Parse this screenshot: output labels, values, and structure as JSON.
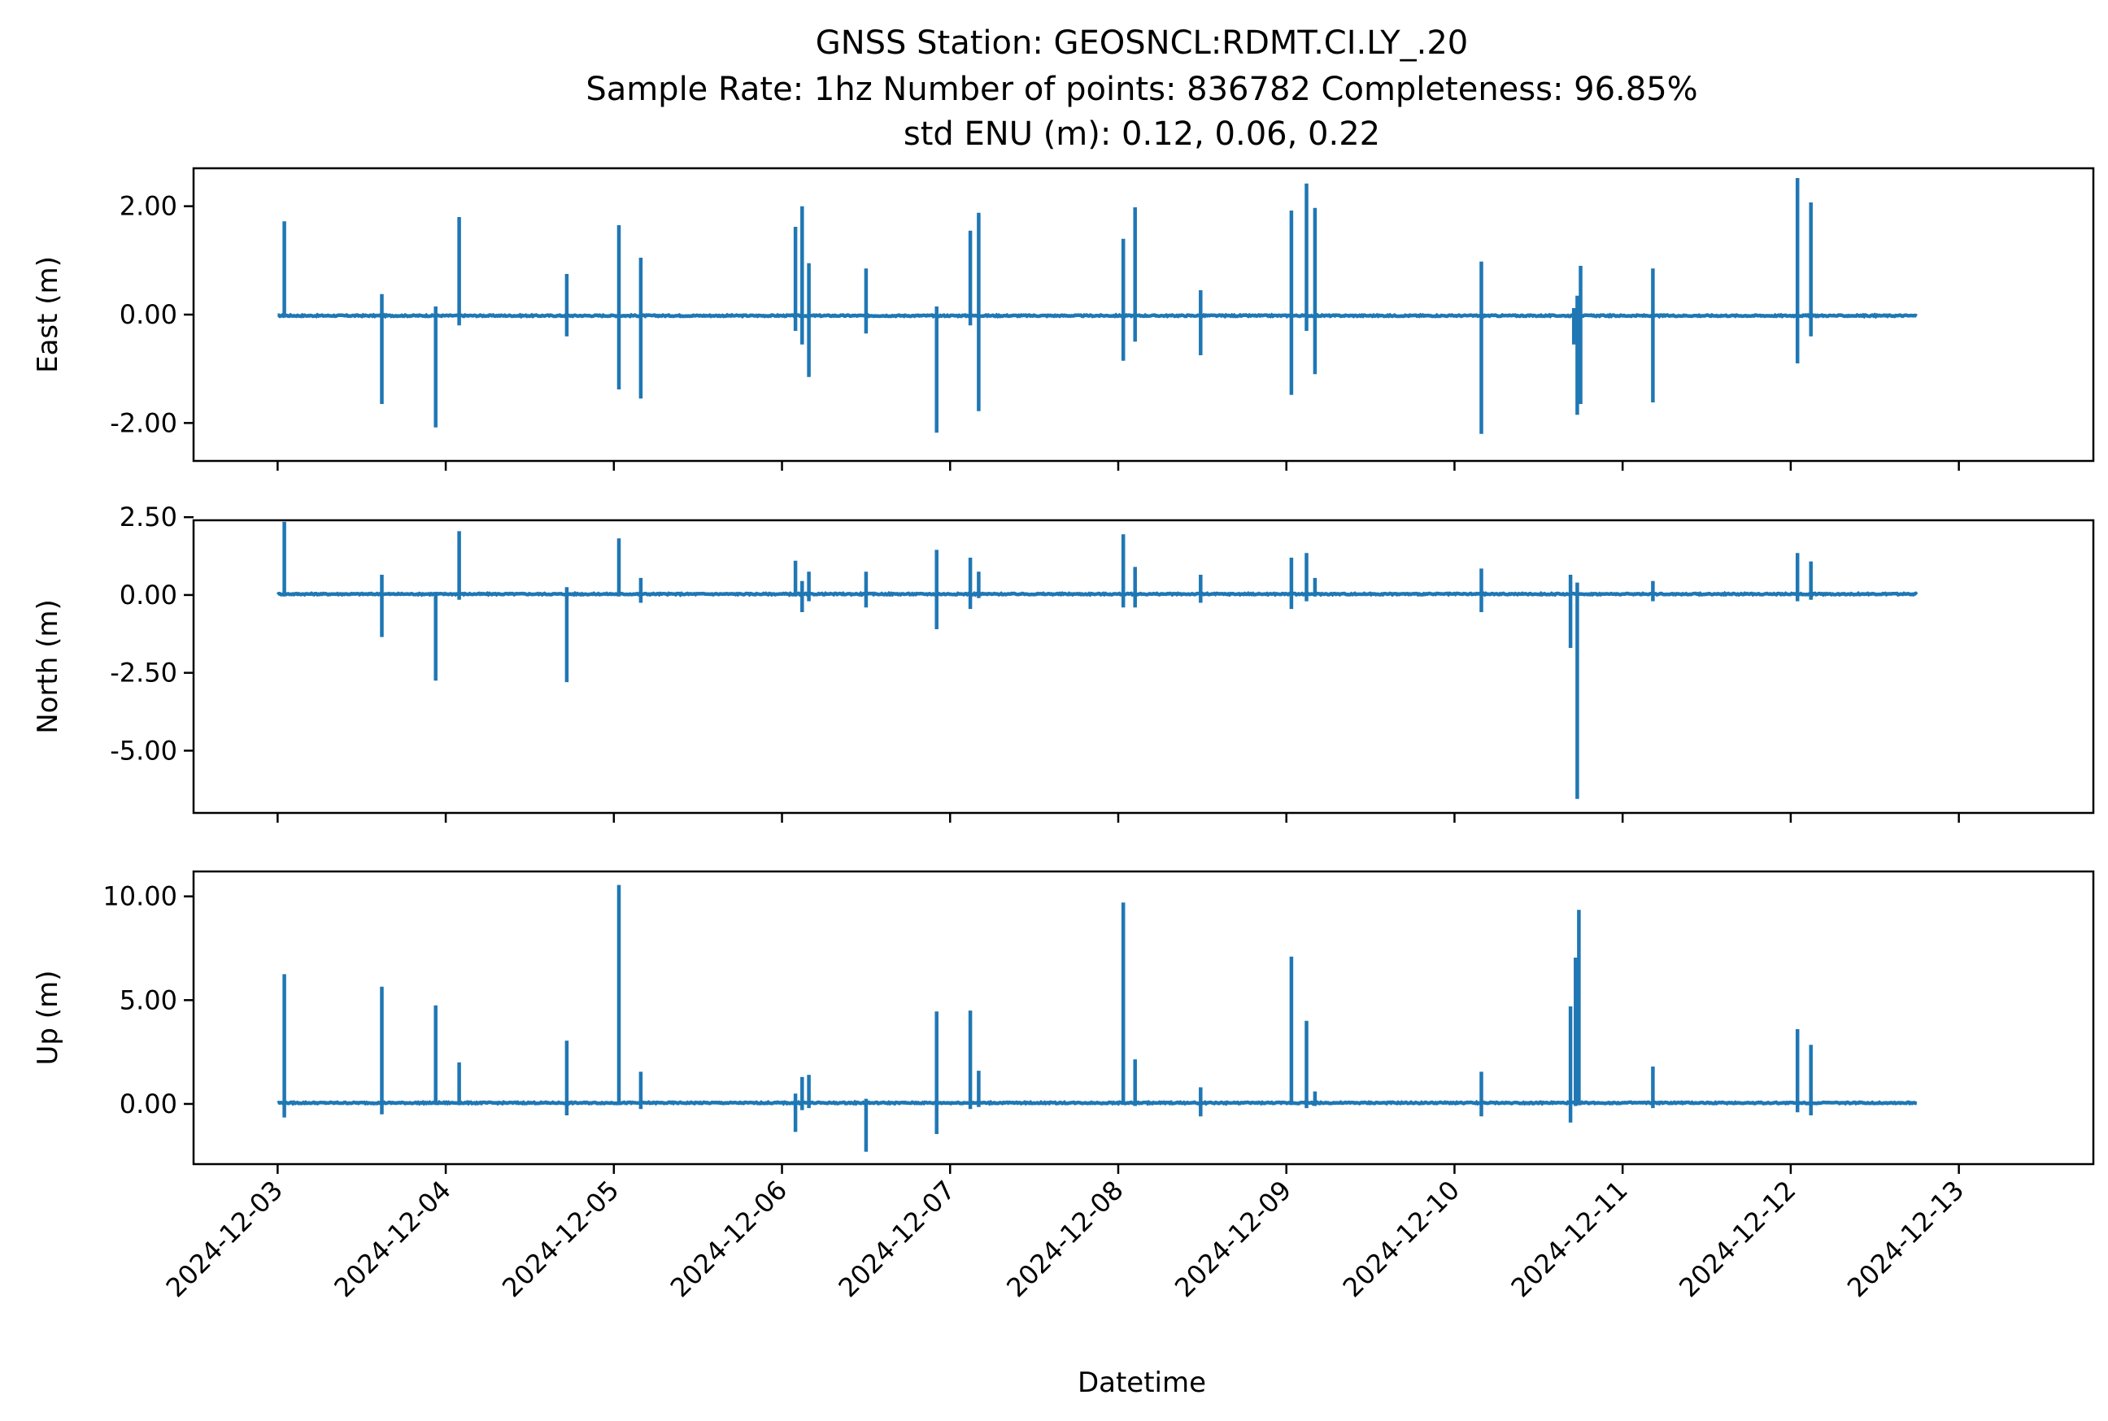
{
  "chart_data": {
    "type": "line",
    "title_lines": [
      "GNSS Station: GEOSNCL:RDMT.CI.LY_.20",
      "Sample Rate: 1hz   Number of points: 836782    Completeness:  96.85%",
      "std ENU (m):  0.12, 0.06, 0.22"
    ],
    "xlabel": "Datetime",
    "x_tick_labels": [
      "2024-12-03",
      "2024-12-04",
      "2024-12-05",
      "2024-12-06",
      "2024-12-07",
      "2024-12-08",
      "2024-12-09",
      "2024-12-10",
      "2024-12-11",
      "2024-12-12",
      "2024-12-13"
    ],
    "x_range_days": [
      -0.5,
      10.8
    ],
    "data_span_days": [
      0.0,
      9.75
    ],
    "series_color": "#1f77b4",
    "grid": false,
    "panels": [
      {
        "ylabel": "East (m)",
        "ylim": [
          -2.7,
          2.7
        ],
        "y_ticks": [
          2.0,
          0.0,
          -2.0
        ],
        "y_tick_labels": [
          "2.00",
          "0.00",
          "-2.00"
        ],
        "baseline": -0.02,
        "spikes": [
          {
            "day": 0.04,
            "min": -0.05,
            "max": 1.72
          },
          {
            "day": 0.62,
            "min": -1.65,
            "max": 0.38
          },
          {
            "day": 0.94,
            "min": -2.08,
            "max": 0.15
          },
          {
            "day": 1.08,
            "min": -0.2,
            "max": 1.8
          },
          {
            "day": 1.72,
            "min": -0.4,
            "max": 0.75
          },
          {
            "day": 2.03,
            "min": -1.38,
            "max": 1.65
          },
          {
            "day": 2.16,
            "min": -1.55,
            "max": 1.05
          },
          {
            "day": 3.08,
            "min": -0.3,
            "max": 1.62
          },
          {
            "day": 3.12,
            "min": -0.55,
            "max": 2.0
          },
          {
            "day": 3.16,
            "min": -1.15,
            "max": 0.95
          },
          {
            "day": 3.5,
            "min": -0.35,
            "max": 0.85
          },
          {
            "day": 3.92,
            "min": -2.18,
            "max": 0.15
          },
          {
            "day": 4.12,
            "min": -0.2,
            "max": 1.55
          },
          {
            "day": 4.17,
            "min": -1.78,
            "max": 1.88
          },
          {
            "day": 5.03,
            "min": -0.85,
            "max": 1.4
          },
          {
            "day": 5.1,
            "min": -0.5,
            "max": 1.98
          },
          {
            "day": 5.49,
            "min": -0.75,
            "max": 0.45
          },
          {
            "day": 6.03,
            "min": -1.48,
            "max": 1.92
          },
          {
            "day": 6.12,
            "min": -0.3,
            "max": 2.42
          },
          {
            "day": 6.17,
            "min": -1.1,
            "max": 1.97
          },
          {
            "day": 7.16,
            "min": -2.2,
            "max": 0.98
          },
          {
            "day": 7.71,
            "min": -0.55,
            "max": 0.12
          },
          {
            "day": 7.73,
            "min": -1.85,
            "max": 0.35
          },
          {
            "day": 7.75,
            "min": -1.65,
            "max": 0.9
          },
          {
            "day": 8.18,
            "min": -1.62,
            "max": 0.85
          },
          {
            "day": 9.04,
            "min": -0.9,
            "max": 2.52
          },
          {
            "day": 9.12,
            "min": -0.4,
            "max": 2.07
          }
        ]
      },
      {
        "ylabel": "North (m)",
        "ylim": [
          -7.0,
          2.4
        ],
        "y_ticks": [
          2.5,
          0.0,
          -2.5,
          -5.0
        ],
        "y_tick_labels": [
          "2.50",
          "0.00",
          "-2.50",
          "-5.00"
        ],
        "baseline": 0.03,
        "spikes": [
          {
            "day": 0.04,
            "min": -0.05,
            "max": 2.35
          },
          {
            "day": 0.62,
            "min": -1.35,
            "max": 0.65
          },
          {
            "day": 0.94,
            "min": -2.75,
            "max": 0.1
          },
          {
            "day": 1.08,
            "min": -0.15,
            "max": 2.05
          },
          {
            "day": 1.72,
            "min": -2.8,
            "max": 0.25
          },
          {
            "day": 2.03,
            "min": -0.05,
            "max": 1.82
          },
          {
            "day": 2.16,
            "min": -0.25,
            "max": 0.55
          },
          {
            "day": 3.08,
            "min": -0.05,
            "max": 1.1
          },
          {
            "day": 3.12,
            "min": -0.55,
            "max": 0.45
          },
          {
            "day": 3.16,
            "min": -0.2,
            "max": 0.75
          },
          {
            "day": 3.5,
            "min": -0.4,
            "max": 0.75
          },
          {
            "day": 3.92,
            "min": -1.1,
            "max": 1.45
          },
          {
            "day": 4.12,
            "min": -0.45,
            "max": 1.2
          },
          {
            "day": 4.17,
            "min": -0.1,
            "max": 0.75
          },
          {
            "day": 5.03,
            "min": -0.4,
            "max": 1.95
          },
          {
            "day": 5.1,
            "min": -0.4,
            "max": 0.9
          },
          {
            "day": 5.49,
            "min": -0.25,
            "max": 0.65
          },
          {
            "day": 6.03,
            "min": -0.45,
            "max": 1.2
          },
          {
            "day": 6.12,
            "min": -0.2,
            "max": 1.35
          },
          {
            "day": 6.17,
            "min": -0.05,
            "max": 0.55
          },
          {
            "day": 7.16,
            "min": -0.55,
            "max": 0.85
          },
          {
            "day": 7.69,
            "min": -1.7,
            "max": 0.65
          },
          {
            "day": 7.73,
            "min": -6.55,
            "max": 0.4
          },
          {
            "day": 8.18,
            "min": -0.2,
            "max": 0.45
          },
          {
            "day": 9.04,
            "min": -0.2,
            "max": 1.35
          },
          {
            "day": 9.12,
            "min": -0.15,
            "max": 1.08
          }
        ]
      },
      {
        "ylabel": "Up (m)",
        "ylim": [
          -2.9,
          11.2
        ],
        "y_ticks": [
          10.0,
          5.0,
          0.0
        ],
        "y_tick_labels": [
          "10.00",
          "5.00",
          "0.00"
        ],
        "baseline": 0.05,
        "spikes": [
          {
            "day": 0.04,
            "min": -0.65,
            "max": 6.25
          },
          {
            "day": 0.62,
            "min": -0.5,
            "max": 5.65
          },
          {
            "day": 0.94,
            "min": -0.05,
            "max": 4.75
          },
          {
            "day": 1.08,
            "min": -0.05,
            "max": 2.0
          },
          {
            "day": 1.72,
            "min": -0.55,
            "max": 3.05
          },
          {
            "day": 2.03,
            "min": -0.05,
            "max": 10.55
          },
          {
            "day": 2.16,
            "min": -0.25,
            "max": 1.55
          },
          {
            "day": 3.08,
            "min": -1.35,
            "max": 0.5
          },
          {
            "day": 3.12,
            "min": -0.3,
            "max": 1.3
          },
          {
            "day": 3.16,
            "min": -0.2,
            "max": 1.4
          },
          {
            "day": 3.5,
            "min": -2.3,
            "max": 0.25
          },
          {
            "day": 3.92,
            "min": -1.45,
            "max": 4.45
          },
          {
            "day": 4.12,
            "min": -0.25,
            "max": 4.5
          },
          {
            "day": 4.17,
            "min": -0.15,
            "max": 1.6
          },
          {
            "day": 5.03,
            "min": -0.05,
            "max": 9.7
          },
          {
            "day": 5.1,
            "min": -0.1,
            "max": 2.15
          },
          {
            "day": 5.49,
            "min": -0.6,
            "max": 0.8
          },
          {
            "day": 6.03,
            "min": -0.05,
            "max": 7.1
          },
          {
            "day": 6.12,
            "min": -0.2,
            "max": 4.0
          },
          {
            "day": 6.17,
            "min": -0.1,
            "max": 0.6
          },
          {
            "day": 7.16,
            "min": -0.6,
            "max": 1.55
          },
          {
            "day": 7.69,
            "min": -0.9,
            "max": 4.7
          },
          {
            "day": 7.72,
            "min": -0.1,
            "max": 7.05
          },
          {
            "day": 7.74,
            "min": -0.05,
            "max": 9.35
          },
          {
            "day": 8.18,
            "min": -0.2,
            "max": 1.8
          },
          {
            "day": 9.04,
            "min": -0.4,
            "max": 3.6
          },
          {
            "day": 9.12,
            "min": -0.55,
            "max": 2.85
          }
        ]
      }
    ]
  }
}
